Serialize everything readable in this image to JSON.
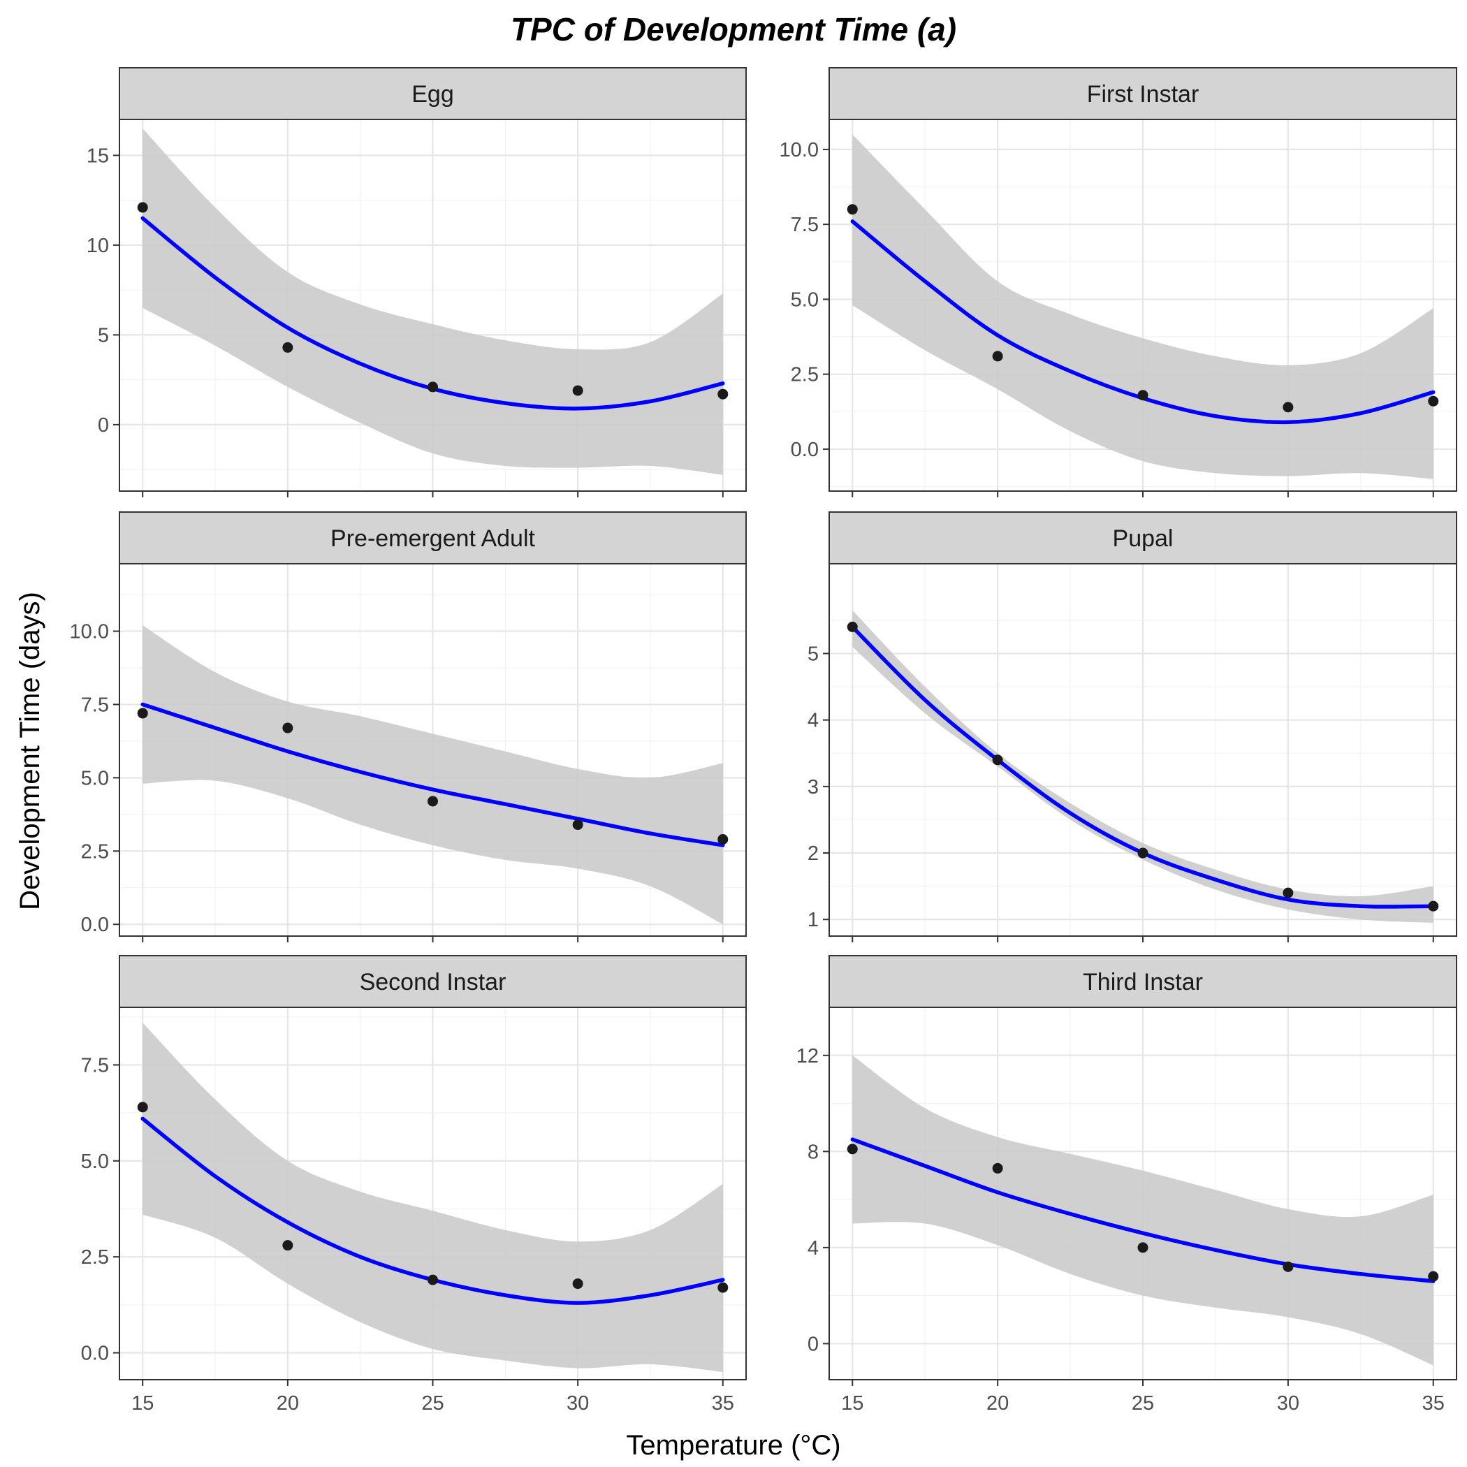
{
  "chart_data": {
    "type": "line",
    "title": "TPC of Development Time (a)",
    "xlabel": "Temperature (°C)",
    "ylabel": "Development Time (days)",
    "grid": true,
    "legend": "none",
    "colors": {
      "fit": "#0000ff",
      "band": "#c8c8c8",
      "points": "#1a1a1a",
      "strip": "#d4d4d4"
    },
    "x_ticks": [
      15,
      20,
      25,
      30,
      35
    ],
    "xlim": [
      14.2,
      35.8
    ],
    "panels": [
      {
        "name": "Egg",
        "ylim": [
          -3.7,
          17.0
        ],
        "y_ticks": [
          0,
          5,
          10,
          15
        ],
        "y_tick_labels": [
          "0",
          "5",
          "10",
          "15"
        ],
        "points": {
          "x": [
            15,
            20,
            25,
            30,
            35
          ],
          "y": [
            12.1,
            4.3,
            2.1,
            1.9,
            1.7
          ]
        },
        "fit": {
          "x": [
            15,
            17.5,
            20,
            22.5,
            25,
            27.5,
            30,
            32.5,
            35
          ],
          "y": [
            11.5,
            8.2,
            5.4,
            3.4,
            2.0,
            1.2,
            0.9,
            1.3,
            2.3
          ]
        },
        "ci_upper": {
          "x": [
            15,
            17.5,
            20,
            22.5,
            25,
            27.5,
            30,
            32.5,
            35
          ],
          "y": [
            16.5,
            12.1,
            8.5,
            6.7,
            5.6,
            4.7,
            4.2,
            4.6,
            7.3
          ]
        },
        "ci_lower": {
          "x": [
            15,
            17.5,
            20,
            22.5,
            25,
            27.5,
            30,
            32.5,
            35
          ],
          "y": [
            6.5,
            4.4,
            2.1,
            0.1,
            -1.6,
            -2.3,
            -2.4,
            -2.3,
            -2.8
          ]
        }
      },
      {
        "name": "First Instar",
        "ylim": [
          -1.4,
          11.0
        ],
        "y_ticks": [
          0,
          2.5,
          5,
          7.5,
          10
        ],
        "y_tick_labels": [
          "0.0",
          "2.5",
          "5.0",
          "7.5",
          "10.0"
        ],
        "points": {
          "x": [
            15,
            20,
            25,
            30,
            35
          ],
          "y": [
            8.0,
            3.1,
            1.8,
            1.4,
            1.6
          ]
        },
        "fit": {
          "x": [
            15,
            17.5,
            20,
            22.5,
            25,
            27.5,
            30,
            32.5,
            35
          ],
          "y": [
            7.6,
            5.6,
            3.8,
            2.6,
            1.7,
            1.1,
            0.9,
            1.2,
            1.9
          ]
        },
        "ci_upper": {
          "x": [
            15,
            17.5,
            20,
            22.5,
            25,
            27.5,
            30,
            32.5,
            35
          ],
          "y": [
            10.5,
            8.0,
            5.6,
            4.5,
            3.7,
            3.1,
            2.8,
            3.2,
            4.7
          ]
        },
        "ci_lower": {
          "x": [
            15,
            17.5,
            20,
            22.5,
            25,
            27.5,
            30,
            32.5,
            35
          ],
          "y": [
            4.8,
            3.3,
            2.0,
            0.6,
            -0.4,
            -0.8,
            -0.9,
            -0.8,
            -1.0
          ]
        }
      },
      {
        "name": "Pre-emergent Adult",
        "ylim": [
          -0.4,
          12.3
        ],
        "y_ticks": [
          0,
          2.5,
          5,
          7.5,
          10
        ],
        "y_tick_labels": [
          "0.0",
          "2.5",
          "5.0",
          "7.5",
          "10.0"
        ],
        "points": {
          "x": [
            15,
            20,
            25,
            30,
            35
          ],
          "y": [
            7.2,
            6.7,
            4.2,
            3.4,
            2.9
          ]
        },
        "fit": {
          "x": [
            15,
            17.5,
            20,
            22.5,
            25,
            27.5,
            30,
            32.5,
            35
          ],
          "y": [
            7.5,
            6.7,
            5.9,
            5.2,
            4.6,
            4.1,
            3.6,
            3.1,
            2.7
          ]
        },
        "ci_upper": {
          "x": [
            15,
            17.5,
            20,
            22.5,
            25,
            27.5,
            30,
            32.5,
            35
          ],
          "y": [
            10.2,
            8.6,
            7.6,
            7.1,
            6.5,
            5.9,
            5.3,
            5.0,
            5.5
          ]
        },
        "ci_lower": {
          "x": [
            15,
            17.5,
            20,
            22.5,
            25,
            27.5,
            30,
            32.5,
            35
          ],
          "y": [
            4.8,
            4.9,
            4.3,
            3.4,
            2.7,
            2.2,
            1.9,
            1.3,
            0.0
          ]
        }
      },
      {
        "name": "Pupal",
        "ylim": [
          0.75,
          6.35
        ],
        "y_ticks": [
          1,
          2,
          3,
          4,
          5
        ],
        "y_tick_labels": [
          "1",
          "2",
          "3",
          "4",
          "5"
        ],
        "points": {
          "x": [
            15,
            20,
            25,
            30,
            35
          ],
          "y": [
            5.4,
            3.4,
            2.0,
            1.4,
            1.2
          ]
        },
        "fit": {
          "x": [
            15,
            17.5,
            20,
            22.5,
            25,
            27.5,
            30,
            32.5,
            35
          ],
          "y": [
            5.4,
            4.3,
            3.4,
            2.6,
            2.0,
            1.6,
            1.3,
            1.2,
            1.2
          ]
        },
        "ci_upper": {
          "x": [
            15,
            17.5,
            20,
            22.5,
            25,
            27.5,
            30,
            32.5,
            35
          ],
          "y": [
            5.65,
            4.5,
            3.5,
            2.75,
            2.15,
            1.75,
            1.45,
            1.35,
            1.5
          ]
        },
        "ci_lower": {
          "x": [
            15,
            17.5,
            20,
            22.5,
            25,
            27.5,
            30,
            32.5,
            35
          ],
          "y": [
            5.1,
            4.1,
            3.3,
            2.5,
            1.9,
            1.45,
            1.15,
            1.0,
            0.95
          ]
        }
      },
      {
        "name": "Second Instar",
        "ylim": [
          -0.7,
          9.0
        ],
        "y_ticks": [
          0,
          2.5,
          5,
          7.5
        ],
        "y_tick_labels": [
          "0.0",
          "2.5",
          "5.0",
          "7.5"
        ],
        "points": {
          "x": [
            15,
            20,
            25,
            30,
            35
          ],
          "y": [
            6.4,
            2.8,
            1.9,
            1.8,
            1.7
          ]
        },
        "fit": {
          "x": [
            15,
            17.5,
            20,
            22.5,
            25,
            27.5,
            30,
            32.5,
            35
          ],
          "y": [
            6.1,
            4.6,
            3.4,
            2.5,
            1.9,
            1.5,
            1.3,
            1.5,
            1.9
          ]
        },
        "ci_upper": {
          "x": [
            15,
            17.5,
            20,
            22.5,
            25,
            27.5,
            30,
            32.5,
            35
          ],
          "y": [
            8.6,
            6.6,
            5.0,
            4.2,
            3.7,
            3.2,
            2.9,
            3.2,
            4.4
          ]
        },
        "ci_lower": {
          "x": [
            15,
            17.5,
            20,
            22.5,
            25,
            27.5,
            30,
            32.5,
            35
          ],
          "y": [
            3.6,
            3.0,
            1.8,
            0.8,
            0.1,
            -0.2,
            -0.4,
            -0.3,
            -0.5
          ]
        }
      },
      {
        "name": "Third Instar",
        "ylim": [
          -1.5,
          14.0
        ],
        "y_ticks": [
          0,
          4,
          8,
          12
        ],
        "y_tick_labels": [
          "0",
          "4",
          "8",
          "12"
        ],
        "points": {
          "x": [
            15,
            20,
            25,
            30,
            35
          ],
          "y": [
            8.1,
            7.3,
            4.0,
            3.2,
            2.8
          ]
        },
        "fit": {
          "x": [
            15,
            17.5,
            20,
            22.5,
            25,
            27.5,
            30,
            32.5,
            35
          ],
          "y": [
            8.5,
            7.4,
            6.3,
            5.4,
            4.6,
            3.9,
            3.3,
            2.9,
            2.6
          ]
        },
        "ci_upper": {
          "x": [
            15,
            17.5,
            20,
            22.5,
            25,
            27.5,
            30,
            32.5,
            35
          ],
          "y": [
            12.0,
            9.8,
            8.6,
            7.9,
            7.2,
            6.4,
            5.6,
            5.3,
            6.2
          ]
        },
        "ci_lower": {
          "x": [
            15,
            17.5,
            20,
            22.5,
            25,
            27.5,
            30,
            32.5,
            35
          ],
          "y": [
            5.0,
            5.0,
            4.1,
            2.9,
            2.0,
            1.5,
            1.1,
            0.4,
            -0.9
          ]
        }
      }
    ]
  }
}
